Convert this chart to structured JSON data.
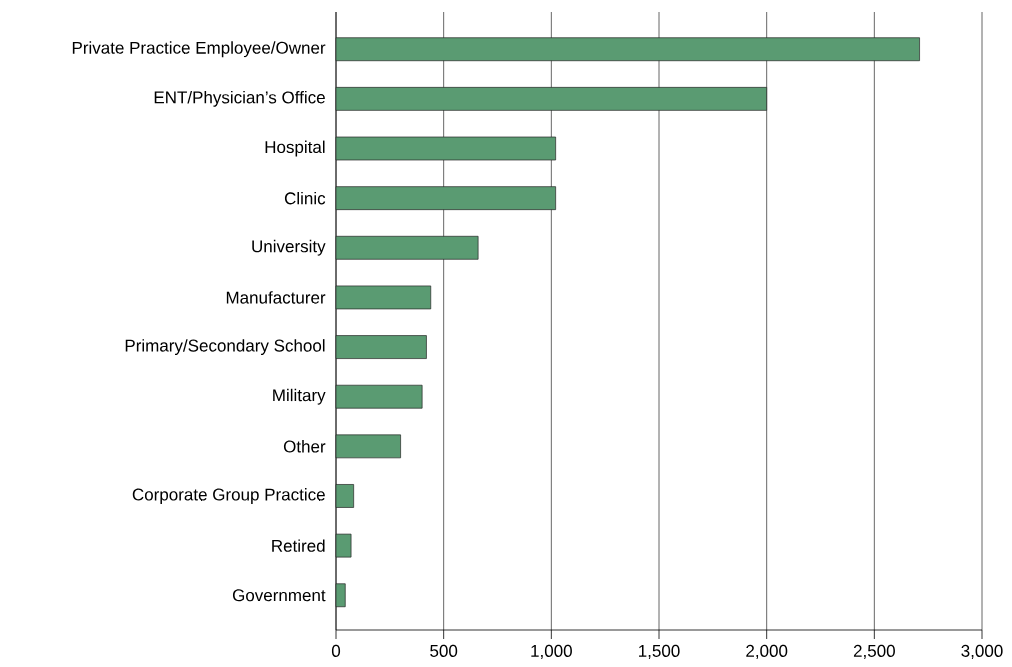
{
  "chart_data": {
    "type": "bar",
    "orientation": "horizontal",
    "categories": [
      "Private Practice Employee/Owner",
      "ENT/Physician’s Office",
      "Hospital",
      "Clinic",
      "University",
      "Manufacturer",
      "Primary/Secondary School",
      "Military",
      "Other",
      "Corporate Group Practice",
      "Retired",
      "Government"
    ],
    "values": [
      2710,
      2000,
      1020,
      1020,
      660,
      440,
      420,
      400,
      300,
      82,
      70,
      43
    ],
    "color": "#5a9b72",
    "xlim": [
      0,
      3000
    ],
    "xticks": [
      0,
      500,
      {
        "value": 1000,
        "label": "1,000"
      },
      {
        "value": 1500,
        "label": "1,500"
      },
      {
        "value": 2000,
        "label": "2,000"
      },
      {
        "value": 2500,
        "label": "2,500"
      },
      {
        "value": 3000,
        "label": "3,000"
      }
    ],
    "grid": "x"
  }
}
